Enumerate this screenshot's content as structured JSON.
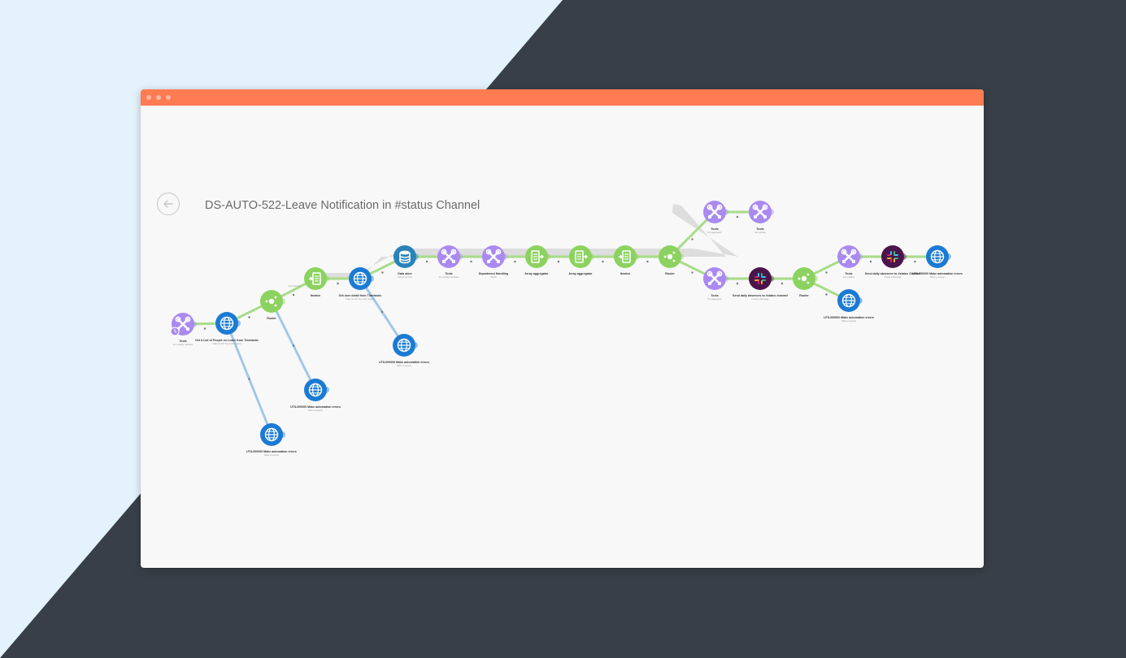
{
  "scenario": {
    "title": "DS-AUTO-522-Leave Notification in #status Channel"
  },
  "icons": {
    "back": "arrow-left-icon",
    "tools": "wrench-icon",
    "http": "globe-icon",
    "router": "router-icon",
    "iterator": "iterator-icon",
    "aggregator": "aggregator-icon",
    "datastore": "database-icon",
    "slack": "slack-icon",
    "schedule": "clock-icon"
  },
  "colors": {
    "titlebar": "#ff7b52",
    "tools": "#a98af0",
    "http": "#1b7bd4",
    "flow_green": "#8cd260",
    "datastore": "#2a82b9",
    "slack": "#4a154b",
    "page_dark": "#383f48",
    "page_light": "#e3f2fc"
  },
  "modules": [
    {
      "id": "tools-1",
      "kind": "tools",
      "label": "Tools",
      "sub": "Set multiple variables",
      "clock": true
    },
    {
      "id": "http-1",
      "kind": "http",
      "label": "Get a List of People on Leave from Timetastic",
      "sub": "Make an API Key Auth request"
    },
    {
      "id": "router-1",
      "kind": "router",
      "label": "Router",
      "sub": ""
    },
    {
      "id": "iterator-1",
      "kind": "iterator",
      "label": "Iterator",
      "sub": ""
    },
    {
      "id": "http-2",
      "kind": "http",
      "label": "Get user detail from Timetastic",
      "sub": "Make an API Key Auth request"
    },
    {
      "id": "datastore-1",
      "kind": "datastore",
      "label": "Data store",
      "sub": "Search records"
    },
    {
      "id": "tools-2",
      "kind": "tools",
      "label": "Tools",
      "sub": "Set multiple variables"
    },
    {
      "id": "tools-3",
      "kind": "tools",
      "label": "Department Handling",
      "sub": "Switch"
    },
    {
      "id": "agg-1",
      "kind": "aggregator",
      "label": "Array aggregator",
      "sub": ""
    },
    {
      "id": "agg-2",
      "kind": "aggregator",
      "label": "Array aggregator",
      "sub": ""
    },
    {
      "id": "iterator-2",
      "kind": "iterator",
      "label": "Iterator",
      "sub": ""
    },
    {
      "id": "router-2",
      "kind": "router",
      "label": "Router",
      "sub": ""
    },
    {
      "id": "tools-4",
      "kind": "tools",
      "label": "Tools",
      "sub": "Text aggregator"
    },
    {
      "id": "tools-5",
      "kind": "tools",
      "label": "Tools",
      "sub": "Set variable"
    },
    {
      "id": "tools-6",
      "kind": "tools",
      "label": "Tools",
      "sub": "Text aggregator"
    },
    {
      "id": "slack-1",
      "kind": "slack",
      "label": "Send daily absences to #status channel",
      "sub": "Create a Message"
    },
    {
      "id": "router-3",
      "kind": "router",
      "label": "Router",
      "sub": ""
    },
    {
      "id": "tools-7",
      "kind": "tools",
      "label": "Tools",
      "sub": "Get variable"
    },
    {
      "id": "slack-2",
      "kind": "slack",
      "label": "Send daily absences to #status Channel",
      "sub": "Create a Message"
    },
    {
      "id": "http-3",
      "kind": "http",
      "label": "UTIL000000 Make automation errors",
      "sub": "Make a request"
    },
    {
      "id": "http-4",
      "kind": "http",
      "label": "UTIL000000 Make automation errors",
      "sub": "Make a request"
    },
    {
      "id": "http-5",
      "kind": "http",
      "label": "UTIL000000 Make automation errors",
      "sub": "Make a request"
    },
    {
      "id": "http-6",
      "kind": "http",
      "label": "UTIL000000 Make automation errors",
      "sub": "Make a request"
    },
    {
      "id": "http-7",
      "kind": "http",
      "label": "UTIL000000 Make automation errors",
      "sub": "Make a request"
    },
    {
      "id": "http-8",
      "kind": "http",
      "label": "UTIL000000 Make automation errors",
      "sub": "Make a request"
    }
  ],
  "links": [
    {
      "from": "tools-1",
      "to": "http-1",
      "style": "flow"
    },
    {
      "from": "http-1",
      "to": "router-1",
      "style": "flow"
    },
    {
      "from": "router-1",
      "to": "iterator-1",
      "style": "flow",
      "filter": "Has Results"
    },
    {
      "from": "router-1",
      "to": "http-3",
      "style": "error"
    },
    {
      "from": "http-1",
      "to": "http-4",
      "style": "error"
    },
    {
      "from": "iterator-1",
      "to": "http-2",
      "style": "flow"
    },
    {
      "from": "http-2",
      "to": "datastore-1",
      "style": "flow"
    },
    {
      "from": "http-2",
      "to": "http-5",
      "style": "error"
    },
    {
      "from": "datastore-1",
      "to": "tools-2",
      "style": "flow"
    },
    {
      "from": "tools-2",
      "to": "tools-3",
      "style": "flow"
    },
    {
      "from": "tools-3",
      "to": "agg-1",
      "style": "flow"
    },
    {
      "from": "agg-1",
      "to": "agg-2",
      "style": "flow"
    },
    {
      "from": "agg-2",
      "to": "iterator-2",
      "style": "flow"
    },
    {
      "from": "iterator-2",
      "to": "router-2",
      "style": "flow"
    },
    {
      "from": "router-2",
      "to": "tools-4",
      "style": "flow"
    },
    {
      "from": "tools-4",
      "to": "tools-5",
      "style": "flow"
    },
    {
      "from": "router-2",
      "to": "tools-6",
      "style": "flow"
    },
    {
      "from": "tools-6",
      "to": "slack-1",
      "style": "flow"
    },
    {
      "from": "slack-1",
      "to": "router-3",
      "style": "flow"
    },
    {
      "from": "router-3",
      "to": "tools-7",
      "style": "flow"
    },
    {
      "from": "tools-7",
      "to": "slack-2",
      "style": "flow"
    },
    {
      "from": "slack-2",
      "to": "http-6",
      "style": "flow"
    },
    {
      "from": "router-3",
      "to": "http-7",
      "style": "flow"
    }
  ]
}
